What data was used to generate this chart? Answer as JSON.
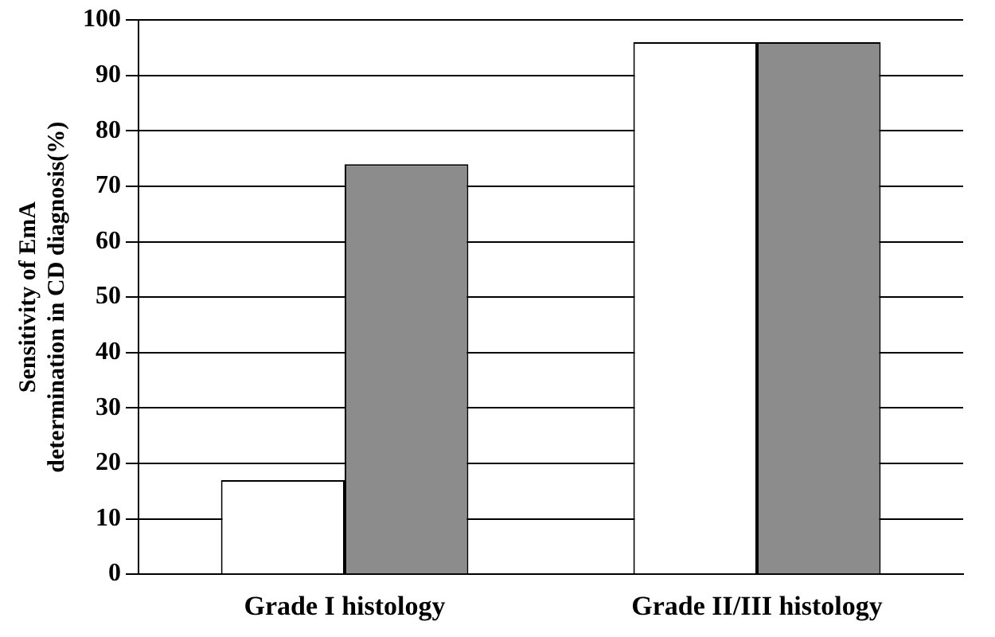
{
  "chart_data": {
    "type": "bar",
    "ylabel": "Sensitivity of EmA determination in CD diagnosis(%)",
    "categories": [
      "Grade I histology",
      "Grade II/III histology"
    ],
    "series": [
      {
        "color": "#ffffff",
        "values": [
          17,
          96
        ]
      },
      {
        "color": "#8c8c8c",
        "values": [
          74,
          96
        ]
      }
    ],
    "ylim": [
      0,
      100
    ],
    "yticks": [
      0,
      10,
      20,
      30,
      40,
      50,
      60,
      70,
      80,
      90,
      100
    ],
    "grid": "y"
  }
}
